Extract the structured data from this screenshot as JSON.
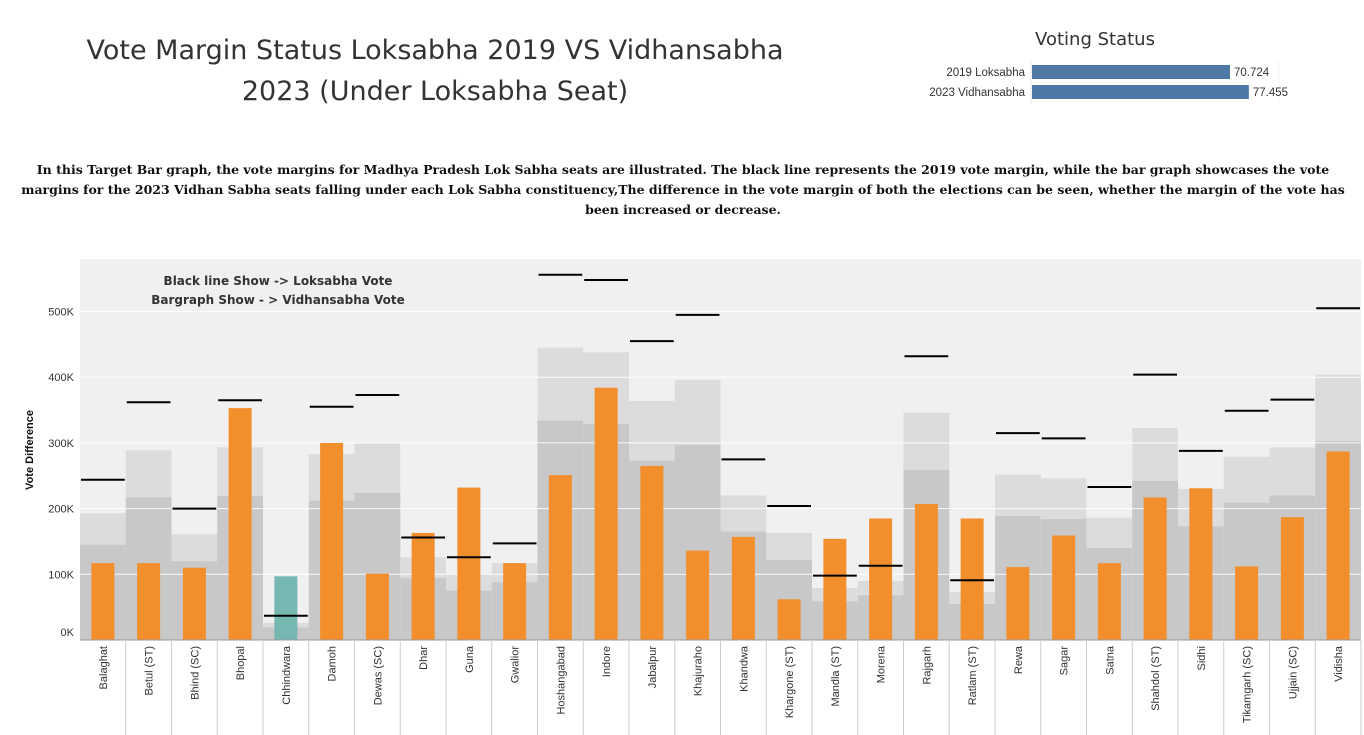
{
  "title": "Vote Margin Status Loksabha 2019 VS Vidhansabha 2023 (Under Loksabha Seat)",
  "description": "In this Target Bar graph, the vote margins for Madhya Pradesh Lok Sabha seats are illustrated. The black line represents the 2019 vote margin, while the bar graph showcases the vote margins for the 2023 Vidhan Sabha seats falling under each Lok Sabha constituency,The difference in the vote margin of both the elections can be seen, whether the margin of the vote has been increased or decrease.",
  "voting_status": {
    "title": "Voting Status",
    "rows": [
      {
        "label": "2019 Loksabha",
        "value": 70.724,
        "value_text": "70.724"
      },
      {
        "label": "2023 Vidhansabha",
        "value": 77.455,
        "value_text": "77.455"
      }
    ],
    "max": 80,
    "bar_color": "#4e79a7"
  },
  "chart_data": {
    "type": "bar",
    "ylabel": "Vote Difference",
    "ylim": [
      0,
      580000
    ],
    "yticks": [
      0,
      100000,
      200000,
      300000,
      400000,
      500000
    ],
    "ytick_labels": [
      "0K",
      "100K",
      "200K",
      "300K",
      "400K",
      "500K"
    ],
    "annotation": [
      "Black line Show -> Loksabha Vote",
      "Bargraph Show - > Vidhansabha Vote"
    ],
    "categories": [
      "Balaghat",
      "Betul (ST)",
      "Bhind (SC)",
      "Bhopal",
      "Chhindwara",
      "Damoh",
      "Dewas (SC)",
      "Dhar",
      "Guna",
      "Gwalior",
      "Hoshangabad",
      "Indore",
      "Jabalpur",
      "Khajuraho",
      "Khandwa",
      "Khargone (ST)",
      "Mandla (ST)",
      "Morena",
      "Rajgarh",
      "Ratlam (ST)",
      "Rewa",
      "Sagar",
      "Satna",
      "Shahdol (ST)",
      "Sidhi",
      "Tikamgarh (SC)",
      "Ujjain (SC)",
      "Vidisha"
    ],
    "vidhansabha_2023": [
      117000,
      117000,
      110000,
      353000,
      97000,
      300000,
      101000,
      163000,
      232000,
      117000,
      251000,
      384000,
      265000,
      136000,
      157000,
      62000,
      154000,
      185000,
      207000,
      185000,
      111000,
      159000,
      117000,
      217000,
      231000,
      112000,
      187000,
      287000
    ],
    "loksabha_2019": [
      244000,
      362000,
      200000,
      365000,
      37000,
      355000,
      373000,
      156000,
      126000,
      147000,
      556000,
      548000,
      455000,
      495000,
      275000,
      204000,
      98000,
      113000,
      432000,
      91000,
      315000,
      307000,
      233000,
      404000,
      288000,
      349000,
      366000,
      505000
    ],
    "band_outer": [
      193000,
      289000,
      161000,
      293000,
      26000,
      283000,
      299000,
      126000,
      101000,
      117000,
      445000,
      438000,
      364000,
      396000,
      220000,
      163000,
      79000,
      90000,
      346000,
      73000,
      252000,
      246000,
      186000,
      323000,
      230000,
      279000,
      293000,
      404000
    ],
    "band_inner": [
      145000,
      217000,
      120000,
      219000,
      19000,
      212000,
      224000,
      94000,
      75000,
      88000,
      334000,
      329000,
      273000,
      297000,
      165000,
      122000,
      59000,
      68000,
      259000,
      55000,
      189000,
      184000,
      140000,
      242000,
      173000,
      209000,
      220000,
      303000
    ],
    "highlighted_category": "Chhindwara",
    "colors": {
      "bar": "#f28e2b",
      "highlight_bar": "#76b7b2",
      "target_line": "#000000",
      "band_outer": "#dcdcdc",
      "band_inner": "#c8c8c8",
      "plot_bg": "#f0f0f0"
    }
  }
}
